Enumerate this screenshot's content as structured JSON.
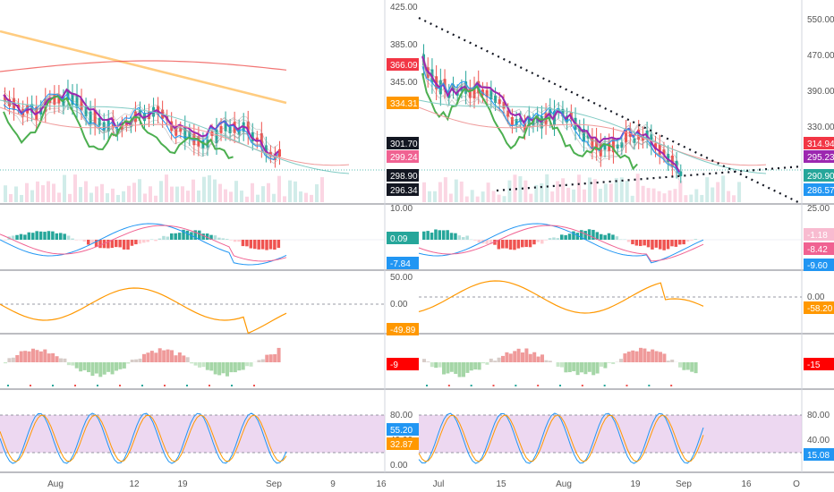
{
  "left_chart": {
    "price_axis": {
      "ticks": [
        "425.00",
        "385.00",
        "345.00"
      ]
    },
    "price_labels": [
      {
        "text": "366.09",
        "color": "#f23645"
      },
      {
        "text": "334.31",
        "color": "#ff9800"
      },
      {
        "text": "301.70",
        "color": "#131722"
      },
      {
        "text": "299.24",
        "color": "#f06292"
      },
      {
        "text": "298.90",
        "color": "#131722"
      },
      {
        "text": "296.34",
        "color": "#131722"
      }
    ],
    "macd_axis": {
      "ticks": [
        "10.00"
      ]
    },
    "macd_labels": [
      {
        "text": "0.09",
        "color": "#26a69a"
      },
      {
        "text": "-7.84",
        "color": "#2196f3"
      }
    ],
    "osc_axis": {
      "ticks": [
        "50.00",
        "0.00"
      ]
    },
    "osc_labels": [
      {
        "text": "-49.89",
        "color": "#ff9800"
      }
    ],
    "hist_labels": [
      {
        "text": "-9",
        "color": "#ff0000"
      }
    ],
    "stoch_axis": {
      "ticks": [
        "80.00",
        "40.00",
        "0.00"
      ]
    },
    "stoch_labels": [
      {
        "text": "55.20",
        "color": "#2196f3"
      },
      {
        "text": "32.87",
        "color": "#ff9800"
      }
    ],
    "time_labels": [
      "Aug",
      "12",
      "19",
      "Sep",
      "9",
      "16"
    ]
  },
  "right_chart": {
    "price_axis": {
      "ticks": [
        "550.00",
        "470.00",
        "390.00",
        "330.00"
      ]
    },
    "price_labels": [
      {
        "text": "314.94",
        "color": "#f23645"
      },
      {
        "text": "295.23",
        "color": "#9c27b0"
      },
      {
        "text": "290.90",
        "color": "#26a69a"
      },
      {
        "text": "286.57",
        "color": "#2196f3"
      }
    ],
    "macd_axis": {
      "ticks": [
        "25.00"
      ]
    },
    "macd_labels": [
      {
        "text": "-1.18",
        "color": "#f8bbd0",
        "text_color": "#333333"
      },
      {
        "text": "-8.42",
        "color": "#f06292"
      },
      {
        "text": "-9.60",
        "color": "#2196f3"
      }
    ],
    "osc_axis": {
      "ticks": [
        "0.00"
      ]
    },
    "osc_labels": [
      {
        "text": "-58.20",
        "color": "#ff9800"
      }
    ],
    "hist_labels": [
      {
        "text": "-15",
        "color": "#ff0000"
      }
    ],
    "stoch_axis": {
      "ticks": [
        "80.00",
        "40.00"
      ]
    },
    "stoch_labels": [
      {
        "text": "15.08",
        "color": "#2196f3"
      }
    ],
    "time_labels": [
      "Jul",
      "15",
      "Aug",
      "19",
      "Sep",
      "16",
      "O"
    ]
  }
}
